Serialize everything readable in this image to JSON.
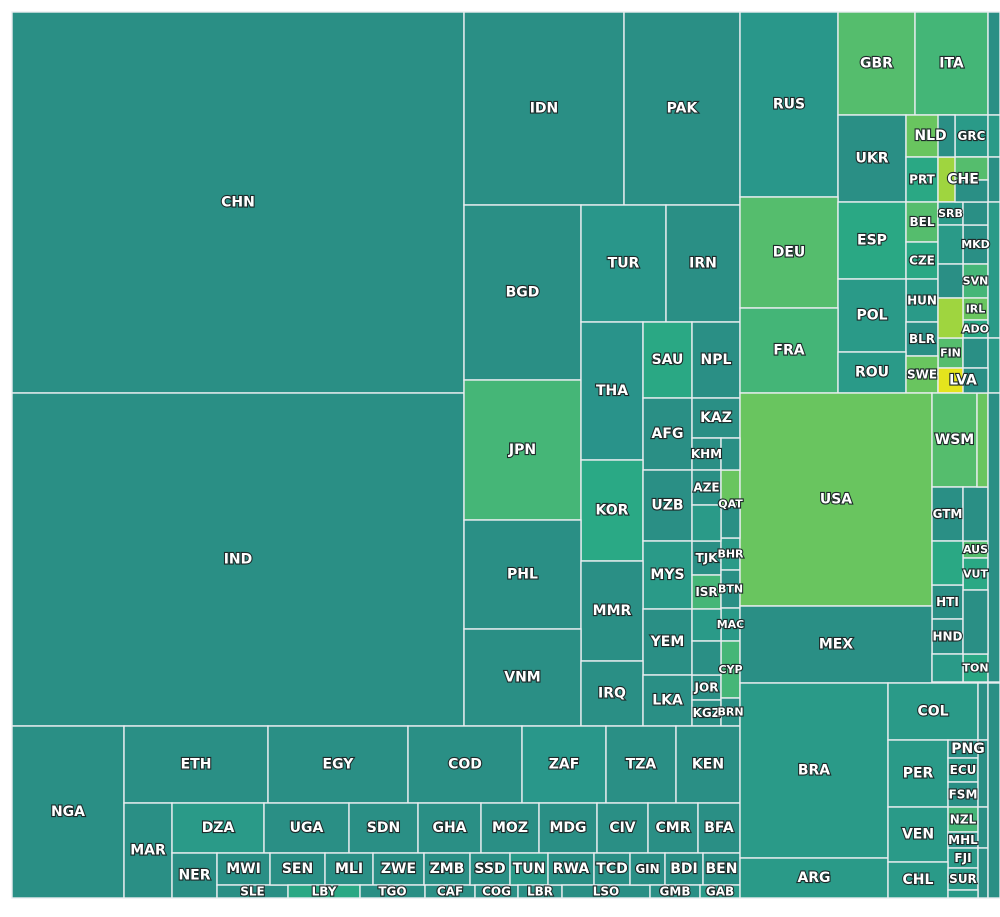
{
  "chart_data": {
    "type": "treemap",
    "title": "",
    "colors": {
      "base": "#2a8f85",
      "mid_teal": "#27988a",
      "teal_green": "#2aa884",
      "green": "#44b577",
      "light_green": "#69c55f",
      "lime": "#9fd53f",
      "yellow": "#e4e41d"
    },
    "cells": [
      {
        "label": "CHN",
        "color": "#2a8f85"
      },
      {
        "label": "IND",
        "color": "#2a8f85"
      },
      {
        "label": "IDN",
        "color": "#2a8f85"
      },
      {
        "label": "PAK",
        "color": "#2a8f85"
      },
      {
        "label": "BGD",
        "color": "#2a8f85"
      },
      {
        "label": "TUR",
        "color": "#29968a"
      },
      {
        "label": "IRN",
        "color": "#2a8f85"
      },
      {
        "label": "JPN",
        "color": "#45b677"
      },
      {
        "label": "THA",
        "color": "#29938a"
      },
      {
        "label": "SAU",
        "color": "#2aa884"
      },
      {
        "label": "NPL",
        "color": "#2a8f85"
      },
      {
        "label": "AFG",
        "color": "#2a8f85"
      },
      {
        "label": "KAZ",
        "color": "#2a8f85"
      },
      {
        "label": "KOR",
        "color": "#2aa985"
      },
      {
        "label": "KHM",
        "color": "#2a8f85"
      },
      {
        "label": "UZB",
        "color": "#2a8f85"
      },
      {
        "label": "AZE",
        "color": "#2a8f85"
      },
      {
        "label": "QAT",
        "color": "#69c55f"
      },
      {
        "label": "PHL",
        "color": "#2a8f85"
      },
      {
        "label": "MYS",
        "color": "#2a9a88"
      },
      {
        "label": "TJK",
        "color": "#2a8f85"
      },
      {
        "label": "BHR",
        "color": "#2a9a88"
      },
      {
        "label": "ISR",
        "color": "#45b677"
      },
      {
        "label": "BTN",
        "color": "#2a8f85"
      },
      {
        "label": "MMR",
        "color": "#2a8f85"
      },
      {
        "label": "YEM",
        "color": "#2a8f85"
      },
      {
        "label": "MAC",
        "color": "#2a9a88"
      },
      {
        "label": "VNM",
        "color": "#2a8f85"
      },
      {
        "label": "IRQ",
        "color": "#2a8f85"
      },
      {
        "label": "LKA",
        "color": "#2a8f85"
      },
      {
        "label": "JOR",
        "color": "#2a8f85"
      },
      {
        "label": "CYP",
        "color": "#45b677"
      },
      {
        "label": "KGZ",
        "color": "#2a8f85"
      },
      {
        "label": "BRN",
        "color": "#2a8f85"
      },
      {
        "label": "RUS",
        "color": "#29978a"
      },
      {
        "label": "GBR",
        "color": "#55bd6d"
      },
      {
        "label": "ITA",
        "color": "#44b677"
      },
      {
        "label": "UKR",
        "color": "#2a8f85"
      },
      {
        "label": "NLD",
        "color": "#69c55f"
      },
      {
        "label": "GRC",
        "color": "#2a9a88"
      },
      {
        "label": "PRT",
        "color": "#2aa884"
      },
      {
        "label": "CHE",
        "color": "#9fd53f"
      },
      {
        "label": "DEU",
        "color": "#55bd6d"
      },
      {
        "label": "ESP",
        "color": "#2aa884"
      },
      {
        "label": "BEL",
        "color": "#55bd6d"
      },
      {
        "label": "SRB",
        "color": "#2a9a88"
      },
      {
        "label": "MKD",
        "color": "#2a8f85"
      },
      {
        "label": "CZE",
        "color": "#2aa884"
      },
      {
        "label": "SVN",
        "color": "#45b677"
      },
      {
        "label": "HUN",
        "color": "#2a9a88"
      },
      {
        "label": "IRL",
        "color": "#69c55f"
      },
      {
        "label": "POL",
        "color": "#2a9a88"
      },
      {
        "label": "ADO",
        "color": "#2aa884"
      },
      {
        "label": "BLR",
        "color": "#2a8f85"
      },
      {
        "label": "FIN",
        "color": "#55bd6d"
      },
      {
        "label": "FRA",
        "color": "#44b577"
      },
      {
        "label": "ROU",
        "color": "#2a9a88"
      },
      {
        "label": "SWE",
        "color": "#69c55f"
      },
      {
        "label": "LVA",
        "color": "#e4e41d"
      },
      {
        "label": "USA",
        "color": "#69c55f"
      },
      {
        "label": "WSM",
        "color": "#55bd6d"
      },
      {
        "label": "GTM",
        "color": "#2a8f85"
      },
      {
        "label": "AUS",
        "color": "#55bd6d"
      },
      {
        "label": "VUT",
        "color": "#2aa884"
      },
      {
        "label": "HTI",
        "color": "#2a8f85"
      },
      {
        "label": "HND",
        "color": "#2a8f85"
      },
      {
        "label": "TON",
        "color": "#2aa884"
      },
      {
        "label": "MEX",
        "color": "#2a8f85"
      },
      {
        "label": "NGA",
        "color": "#2a8f85"
      },
      {
        "label": "ETH",
        "color": "#2a8f85"
      },
      {
        "label": "EGY",
        "color": "#2a8f85"
      },
      {
        "label": "COD",
        "color": "#2a8f85"
      },
      {
        "label": "ZAF",
        "color": "#29978a"
      },
      {
        "label": "TZA",
        "color": "#2a8f85"
      },
      {
        "label": "KEN",
        "color": "#2a8f85"
      },
      {
        "label": "MAR",
        "color": "#2a8f85"
      },
      {
        "label": "DZA",
        "color": "#2a9a88"
      },
      {
        "label": "UGA",
        "color": "#2a8f85"
      },
      {
        "label": "SDN",
        "color": "#2a8f85"
      },
      {
        "label": "GHA",
        "color": "#2a8f85"
      },
      {
        "label": "MOZ",
        "color": "#2a8f85"
      },
      {
        "label": "MDG",
        "color": "#2a8f85"
      },
      {
        "label": "CIV",
        "color": "#2a8f85"
      },
      {
        "label": "CMR",
        "color": "#2a8f85"
      },
      {
        "label": "BFA",
        "color": "#2a8f85"
      },
      {
        "label": "NER",
        "color": "#2a8f85"
      },
      {
        "label": "MWI",
        "color": "#2a8f85"
      },
      {
        "label": "SLE",
        "color": "#2a8f85"
      },
      {
        "label": "SEN",
        "color": "#2a8f85"
      },
      {
        "label": "MLI",
        "color": "#2a8f85"
      },
      {
        "label": "LBY",
        "color": "#2aa884"
      },
      {
        "label": "ZWE",
        "color": "#2a8f85"
      },
      {
        "label": "TGO",
        "color": "#2a8f85"
      },
      {
        "label": "ZMB",
        "color": "#2a8f85"
      },
      {
        "label": "CAF",
        "color": "#2a8f85"
      },
      {
        "label": "SSD",
        "color": "#2a8f85"
      },
      {
        "label": "COG",
        "color": "#2a8f85"
      },
      {
        "label": "TUN",
        "color": "#2a9a88"
      },
      {
        "label": "LBR",
        "color": "#2a8f85"
      },
      {
        "label": "RWA",
        "color": "#2a8f85"
      },
      {
        "label": "TCD",
        "color": "#2a8f85"
      },
      {
        "label": "LSO",
        "color": "#2a8f85"
      },
      {
        "label": "GIN",
        "color": "#2a8f85"
      },
      {
        "label": "BDI",
        "color": "#2a8f85"
      },
      {
        "label": "GMB",
        "color": "#2a8f85"
      },
      {
        "label": "BEN",
        "color": "#2a8f85"
      },
      {
        "label": "GAB",
        "color": "#2a9a88"
      },
      {
        "label": "BRA",
        "color": "#2a9a88"
      },
      {
        "label": "COL",
        "color": "#2a9a88"
      },
      {
        "label": "ARG",
        "color": "#2a9a88"
      },
      {
        "label": "PER",
        "color": "#2a9a88"
      },
      {
        "label": "PNG",
        "color": "#2a8f85"
      },
      {
        "label": "ECU",
        "color": "#2a9a88"
      },
      {
        "label": "FSM",
        "color": "#2a8f85"
      },
      {
        "label": "VEN",
        "color": "#2a9a88"
      },
      {
        "label": "NZL",
        "color": "#44b577"
      },
      {
        "label": "MHL",
        "color": "#2a8f85"
      },
      {
        "label": "FJI",
        "color": "#2a9a88"
      },
      {
        "label": "CHL",
        "color": "#2a9a88"
      },
      {
        "label": "SUR",
        "color": "#2a9a88"
      },
      {
        "label": "",
        "color": "#2a8f85"
      },
      {
        "label": "",
        "color": "#2a9a88"
      },
      {
        "label": "",
        "color": "#2a8f85"
      },
      {
        "label": "",
        "color": "#55bd6d"
      },
      {
        "label": "",
        "color": "#2a9a88"
      },
      {
        "label": "",
        "color": "#2a8f85"
      },
      {
        "label": "",
        "color": "#2a9a88"
      },
      {
        "label": "",
        "color": "#2a8f85"
      },
      {
        "label": "",
        "color": "#9fd53f"
      },
      {
        "label": "",
        "color": "#2a9a88"
      },
      {
        "label": "",
        "color": "#2a8f85"
      },
      {
        "label": "",
        "color": "#2a9a88"
      },
      {
        "label": "",
        "color": "#2aa884"
      },
      {
        "label": "",
        "color": "#2a8f85"
      },
      {
        "label": "",
        "color": "#69c55f"
      },
      {
        "label": "",
        "color": "#2a8f85"
      },
      {
        "label": "",
        "color": "#2a9a88"
      },
      {
        "label": "",
        "color": "#2a8f85"
      },
      {
        "label": "",
        "color": "#2a8f85"
      },
      {
        "label": "",
        "color": "#2a8f85"
      },
      {
        "label": "",
        "color": "#2a8f85"
      },
      {
        "label": "",
        "color": "#2a8f85"
      },
      {
        "label": "",
        "color": "#2a9a88"
      },
      {
        "label": "",
        "color": "#2a8f85"
      },
      {
        "label": "",
        "color": "#2a9a88"
      },
      {
        "label": "",
        "color": "#2a8f85"
      },
      {
        "label": "",
        "color": "#2a8f85"
      },
      {
        "label": "",
        "color": "#2a8f85"
      },
      {
        "label": "",
        "color": "#2a9a88"
      },
      {
        "label": "",
        "color": "#2a8f85"
      },
      {
        "label": "",
        "color": "#2a8f85"
      },
      {
        "label": "",
        "color": "#2a8f85"
      },
      {
        "label": "",
        "color": "#2a8f85"
      },
      {
        "label": "",
        "color": "#9fd53f"
      },
      {
        "label": "",
        "color": "#2a9a88"
      },
      {
        "label": "",
        "color": "#2a8f85"
      },
      {
        "label": "",
        "color": "#2a8f85"
      },
      {
        "label": "",
        "color": "#2a8f85"
      },
      {
        "label": "",
        "color": "#2aa884"
      },
      {
        "label": "",
        "color": "#2a8f85"
      },
      {
        "label": "",
        "color": "#9fd53f"
      },
      {
        "label": "",
        "color": "#69c55f"
      },
      {
        "label": "",
        "color": "#2a8f85"
      },
      {
        "label": "",
        "color": "#2a8f85"
      },
      {
        "label": "",
        "color": "#2a9a88"
      },
      {
        "label": "",
        "color": "#2a8f85"
      }
    ]
  }
}
